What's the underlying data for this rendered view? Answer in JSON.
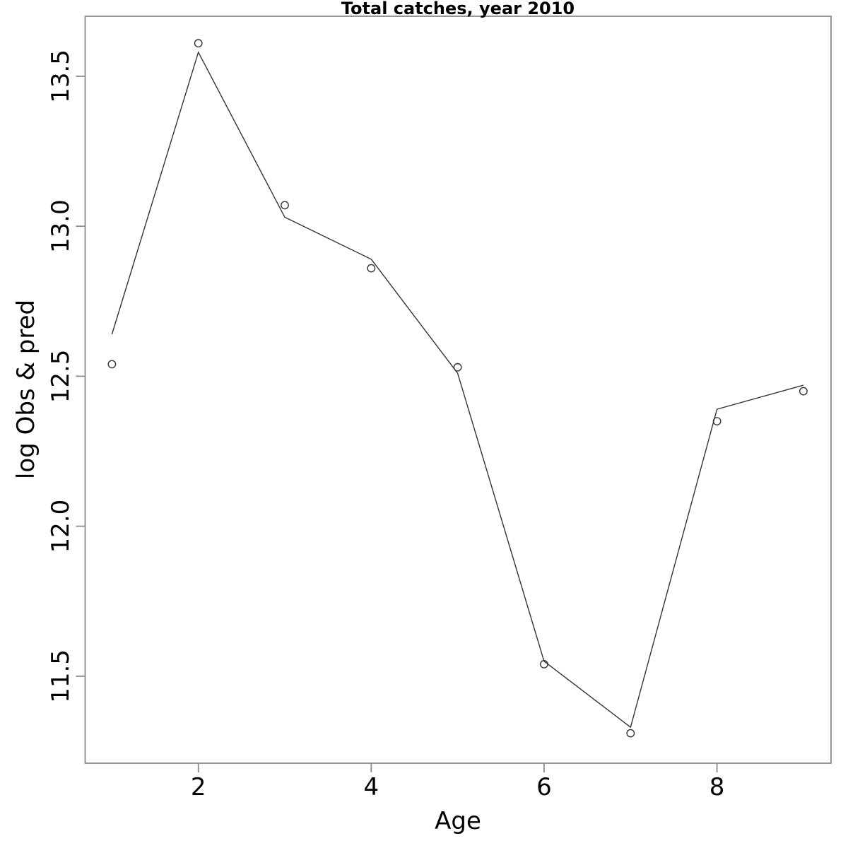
{
  "chart_data": {
    "type": "line",
    "title": "Total catches, year 2010",
    "xlabel": "Age",
    "ylabel": "log Obs & pred",
    "x": [
      1,
      2,
      3,
      4,
      5,
      6,
      7,
      8,
      9
    ],
    "series": [
      {
        "name": "observed",
        "marker": "open-circle",
        "line": false,
        "values": [
          12.54,
          13.61,
          13.07,
          12.86,
          12.53,
          11.54,
          11.31,
          12.35,
          12.45
        ]
      },
      {
        "name": "predicted",
        "marker": "none",
        "line": true,
        "values": [
          12.64,
          13.58,
          13.03,
          12.89,
          12.51,
          11.55,
          11.33,
          12.39,
          12.47
        ]
      }
    ],
    "x_ticks": [
      "2",
      "4",
      "6",
      "8"
    ],
    "x_tick_values": [
      2,
      4,
      6,
      8
    ],
    "y_ticks": [
      "11.5",
      "12.0",
      "12.5",
      "13.0",
      "13.5"
    ],
    "y_tick_values": [
      11.5,
      12.0,
      12.5,
      13.0,
      13.5
    ],
    "xlim": [
      0.69,
      9.32
    ],
    "ylim": [
      11.21,
      13.7
    ],
    "grid": false,
    "legend": null,
    "colors": {
      "box": "#8a8a8a",
      "tick": "#8a8a8a",
      "line": "#333333",
      "marker": "#333333",
      "text": "#000000"
    }
  }
}
